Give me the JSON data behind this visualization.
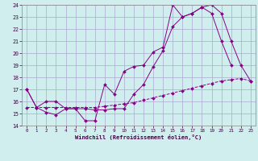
{
  "xlabel": "Windchill (Refroidissement éolien,°C)",
  "bg_color": "#d0eeee",
  "grid_color": "#aaaacc",
  "line_color": "#880088",
  "xmin": 0,
  "xmax": 23,
  "ymin": 14,
  "ymax": 24,
  "yticks": [
    14,
    15,
    16,
    17,
    18,
    19,
    20,
    21,
    22,
    23,
    24
  ],
  "xticks": [
    0,
    1,
    2,
    3,
    4,
    5,
    6,
    7,
    8,
    9,
    10,
    11,
    12,
    13,
    14,
    15,
    16,
    17,
    18,
    19,
    20,
    21,
    22,
    23
  ],
  "line1_x": [
    0,
    1,
    2,
    3,
    4,
    5,
    6,
    7,
    8,
    9,
    10,
    11,
    12,
    13,
    14,
    15,
    16,
    17,
    18,
    19,
    20,
    21
  ],
  "line1_y": [
    17.0,
    15.5,
    15.1,
    14.9,
    15.4,
    15.4,
    14.4,
    14.4,
    17.4,
    16.6,
    18.5,
    18.9,
    19.0,
    20.1,
    20.5,
    24.0,
    23.0,
    23.3,
    23.8,
    23.3,
    21.0,
    19.0
  ],
  "line2_x": [
    0,
    1,
    2,
    3,
    4,
    5,
    6,
    7,
    8,
    9,
    10,
    11,
    12,
    13,
    14,
    15,
    16,
    17,
    18,
    19,
    20,
    21,
    22,
    23
  ],
  "line2_y": [
    17.0,
    15.5,
    16.0,
    16.0,
    15.4,
    15.4,
    15.4,
    15.3,
    15.3,
    15.4,
    15.4,
    16.6,
    17.4,
    18.9,
    20.2,
    22.2,
    23.0,
    23.3,
    23.8,
    24.0,
    23.3,
    21.0,
    19.0,
    17.7
  ],
  "line3_x": [
    0,
    1,
    2,
    3,
    4,
    5,
    6,
    7,
    8,
    9,
    10,
    11,
    12,
    13,
    14,
    15,
    16,
    17,
    18,
    19,
    20,
    21,
    22,
    23
  ],
  "line3_y": [
    15.5,
    15.5,
    15.5,
    15.5,
    15.5,
    15.5,
    15.5,
    15.5,
    15.6,
    15.7,
    15.8,
    15.9,
    16.1,
    16.3,
    16.5,
    16.7,
    16.9,
    17.1,
    17.3,
    17.5,
    17.7,
    17.8,
    17.9,
    17.7
  ]
}
